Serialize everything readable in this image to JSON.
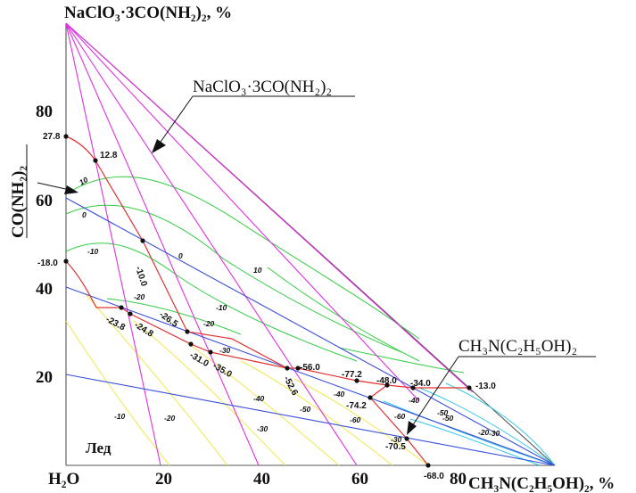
{
  "diagram": {
    "top_vertex_label": "NaClO₃·3CO(NH₂)₂, %",
    "left_axis_label": "CO(NH₂)₂",
    "bottom_left_label": "H₂O",
    "bottom_right_label": "CH₃N(C₂H₅OH)₂, %",
    "y_ticks": [
      "20",
      "40",
      "60",
      "80"
    ],
    "x_ticks": [
      "20",
      "40",
      "60",
      "80"
    ],
    "callout_top": "NaClO₃·3CO(NH₂)₂",
    "callout_bottom": "CH₃N(C₂H₅OH)₂",
    "ice_region": "Лед",
    "points": [
      {
        "label": "27.8"
      },
      {
        "label": "12.8"
      },
      {
        "label": "-18.0"
      },
      {
        "label": "-10.0"
      },
      {
        "label": "-23.8"
      },
      {
        "label": "-24.8"
      },
      {
        "label": "-26.5"
      },
      {
        "label": "-31.0"
      },
      {
        "label": "-35.0"
      },
      {
        "label": "-56.0"
      },
      {
        "label": "-52.6"
      },
      {
        "label": "-77.2"
      },
      {
        "label": "-48.0"
      },
      {
        "label": "-34.0"
      },
      {
        "label": "-13.0"
      },
      {
        "label": "-74.2"
      },
      {
        "label": "-70.5"
      },
      {
        "label": "-68.0"
      }
    ],
    "isotherm_labels": [
      "10",
      "0",
      "-10",
      "0",
      "10",
      "-20",
      "-10",
      "-20",
      "-30",
      "-40",
      "-50",
      "-60",
      "-40",
      "-30",
      "-20",
      "-10",
      "-20",
      "-30",
      "-40",
      "-50",
      "-60",
      "-50",
      "-30",
      "-20",
      "-10"
    ],
    "colors": {
      "outline": "#555555",
      "magenta": "#e030e0",
      "blue": "#3a4fd8",
      "red": "#e03030",
      "green": "#33cc44",
      "yellow": "#f0e84a",
      "cyan": "#30c8e8",
      "point": "#111111"
    }
  }
}
